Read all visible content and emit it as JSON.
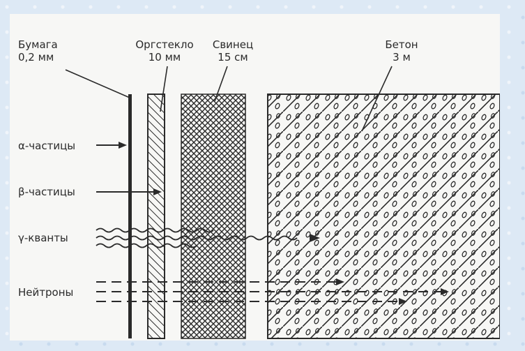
{
  "materials": [
    {
      "id": "paper",
      "name": "Бумага",
      "thickness": "0,2 мм"
    },
    {
      "id": "plexiglass",
      "name": "Оргстекло",
      "thickness": "10 мм"
    },
    {
      "id": "lead",
      "name": "Свинец",
      "thickness": "15 см"
    },
    {
      "id": "concrete",
      "name": "Бетон",
      "thickness": "3 м"
    }
  ],
  "radiation": [
    {
      "id": "alpha",
      "label": "α-частицы",
      "stops_at": "paper"
    },
    {
      "id": "beta",
      "label": "β-частицы",
      "stops_at": "plexiglass"
    },
    {
      "id": "gamma",
      "label": "γ-кванты",
      "stops_at": "concrete"
    },
    {
      "id": "neutron",
      "label": "Нейтроны",
      "stops_at": "concrete"
    }
  ],
  "colors": {
    "ink": "#2a2a2a",
    "paper_bg": "#f7f7f5",
    "frame_bg": "#dde9f5"
  }
}
